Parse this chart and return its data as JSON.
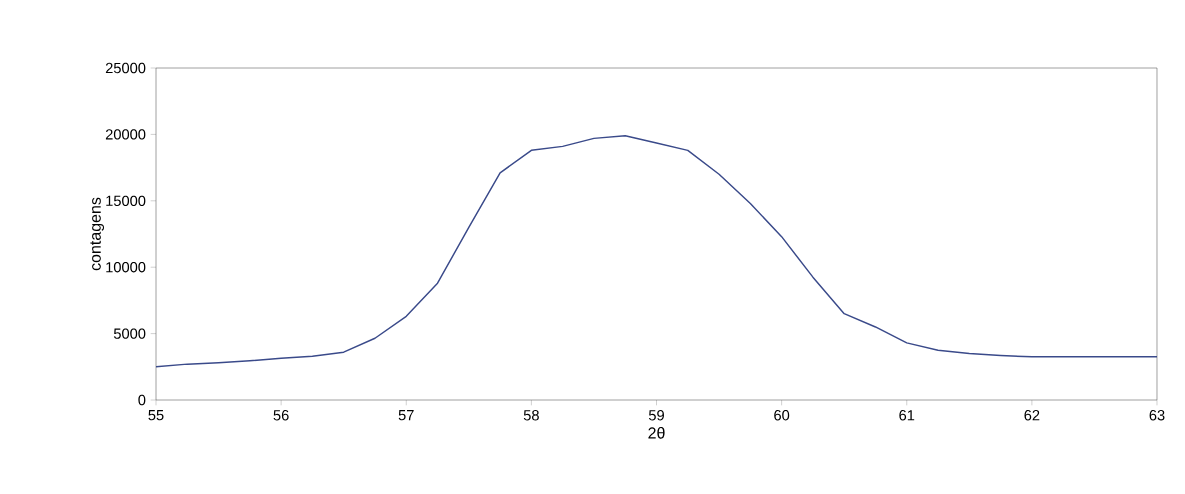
{
  "chart_data": {
    "type": "line",
    "xlabel": "2θ",
    "ylabel": "contagens",
    "x": [
      55.0,
      55.25,
      55.5,
      55.75,
      56.0,
      56.25,
      56.5,
      56.75,
      57.0,
      57.25,
      57.5,
      57.75,
      58.0,
      58.25,
      58.5,
      58.75,
      59.0,
      59.25,
      59.5,
      59.75,
      60.0,
      60.25,
      60.5,
      60.75,
      61.0,
      61.25,
      61.5,
      61.75,
      62.0,
      62.5,
      63.0
    ],
    "series": [
      {
        "color": "#3a4a8a",
        "values": [
          2500,
          2700,
          2800,
          2950,
          3150,
          3300,
          3600,
          4650,
          6300,
          8800,
          13000,
          17100,
          18800,
          19100,
          19700,
          19900,
          19350,
          18800,
          17000,
          14800,
          12300,
          9250,
          6500,
          5500,
          4300,
          3750,
          3500,
          3350,
          3250,
          3250,
          3250
        ]
      }
    ],
    "xlim": [
      55,
      63
    ],
    "ylim": [
      0,
      25000
    ],
    "xticks": [
      55,
      56,
      57,
      58,
      59,
      60,
      61,
      62,
      63
    ],
    "yticks": [
      0,
      5000,
      10000,
      15000,
      20000,
      25000
    ],
    "grid": false,
    "marker": "none",
    "line_style": "solid"
  }
}
